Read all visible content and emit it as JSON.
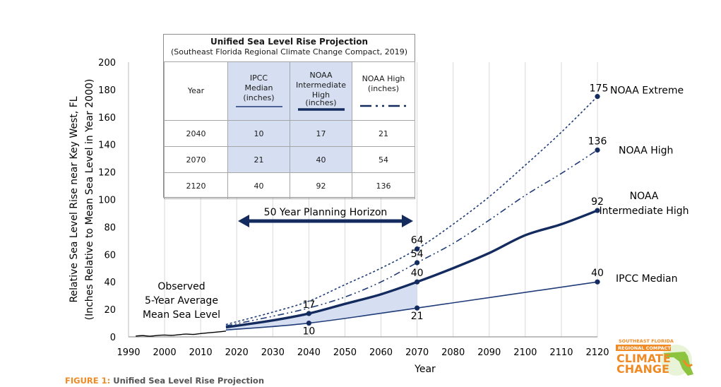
{
  "chart_data": {
    "type": "line",
    "xlabel": "Year",
    "ylabel": [
      "Relative Sea Level Rise near Key West, FL",
      "(Inches Relative to Mean Sea Level in Year 2000)"
    ],
    "xlim": [
      1990,
      2120
    ],
    "ylim": [
      0,
      200
    ],
    "x_ticks": [
      "1990",
      "2000",
      "2010",
      "2020",
      "2030",
      "2040",
      "2050",
      "2060",
      "2070",
      "2080",
      "2090",
      "2100",
      "2110",
      "2120"
    ],
    "y_ticks": [
      "0",
      "20",
      "40",
      "60",
      "80",
      "100",
      "120",
      "140",
      "160",
      "180",
      "200"
    ],
    "grid": "vertical",
    "series": [
      {
        "name": "IPCC Median",
        "style": "solid-thin",
        "color": "#1f3c78",
        "x": [
          2017,
          2040,
          2070,
          2120
        ],
        "y": [
          5,
          10,
          21,
          40
        ]
      },
      {
        "name": "NOAA Intermediate High",
        "style": "solid-thick",
        "color": "#132b5e",
        "x": [
          2017,
          2030,
          2040,
          2050,
          2060,
          2070,
          2080,
          2090,
          2100,
          2110,
          2120
        ],
        "y": [
          7,
          12,
          17,
          24,
          31,
          40,
          50,
          61,
          74,
          82,
          92
        ]
      },
      {
        "name": "NOAA High",
        "style": "dash-dot-dot",
        "color": "#1f3c78",
        "x": [
          2017,
          2030,
          2040,
          2050,
          2060,
          2070,
          2080,
          2090,
          2100,
          2110,
          2120
        ],
        "y": [
          8,
          15,
          21,
          29,
          40,
          54,
          68,
          85,
          103,
          119,
          136
        ]
      },
      {
        "name": "NOAA Extreme",
        "style": "dotted",
        "color": "#1f3c78",
        "x": [
          2017,
          2030,
          2040,
          2050,
          2060,
          2070,
          2080,
          2090,
          2100,
          2110,
          2120
        ],
        "y": [
          9,
          18,
          26,
          38,
          50,
          64,
          82,
          102,
          125,
          149,
          175
        ]
      },
      {
        "name": "Observed 5-Year Average Mean Sea Level",
        "style": "solid-black",
        "color": "#000000",
        "x": [
          1992,
          1994,
          1996,
          1998,
          2000,
          2002,
          2004,
          2006,
          2008,
          2010,
          2012,
          2014,
          2016,
          2017
        ],
        "y": [
          0.6,
          0.9,
          0.5,
          1.0,
          1.3,
          1.1,
          1.6,
          2.0,
          1.8,
          2.4,
          2.9,
          3.4,
          3.9,
          4.2
        ]
      }
    ],
    "points": [
      {
        "x": 2040,
        "y": 10,
        "label": "10",
        "pos": "below"
      },
      {
        "x": 2040,
        "y": 17,
        "label": "17",
        "pos": "above"
      },
      {
        "x": 2070,
        "y": 21,
        "label": "21",
        "pos": "below"
      },
      {
        "x": 2070,
        "y": 40,
        "label": "40",
        "pos": "above"
      },
      {
        "x": 2070,
        "y": 54,
        "label": "54",
        "pos": "above"
      },
      {
        "x": 2070,
        "y": 64,
        "label": "64",
        "pos": "above"
      },
      {
        "x": 2120,
        "y": 40,
        "label": "40",
        "pos": "above"
      },
      {
        "x": 2120,
        "y": 92,
        "label": "92",
        "pos": "above"
      },
      {
        "x": 2120,
        "y": 136,
        "label": "136",
        "pos": "above"
      },
      {
        "x": 2120,
        "y": 175,
        "label": "175",
        "pos": "left"
      }
    ],
    "shaded_band": {
      "x_from": 2017,
      "x_to": 2070,
      "color": "#d6dff1"
    },
    "series_labels": [
      "NOAA Extreme",
      "NOAA High",
      "NOAA",
      "Intermediate High",
      "IPCC Median"
    ],
    "observed_label": [
      "Observed",
      "5-Year Average",
      "Mean Sea Level"
    ],
    "planning_horizon": {
      "label": "50 Year Planning Horizon",
      "x_from": 2020,
      "x_to": 2070
    }
  },
  "table": {
    "title": "Unified Sea Level Rise Projection",
    "subtitle": "(Southeast Florida Regional Climate Change Compact, 2019)",
    "headers": [
      "Year",
      "IPCC Median (inches)",
      "NOAA Intermediate High (inches)",
      "NOAA High (inches)"
    ],
    "header_lines": [
      [
        "Year"
      ],
      [
        "IPCC",
        "Median",
        "(inches)"
      ],
      [
        "NOAA",
        "Intermediate",
        "High",
        "(inches)"
      ],
      [
        "NOAA High",
        "(inches)"
      ]
    ],
    "rows": [
      [
        "2040",
        "10",
        "17",
        "21"
      ],
      [
        "2070",
        "21",
        "40",
        "54"
      ],
      [
        "2120",
        "40",
        "92",
        "136"
      ]
    ]
  },
  "caption": {
    "lead": "FIGURE 1:",
    "text": "Unified Sea Level Rise Projection"
  },
  "logo": {
    "line1": "SOUTHEAST FLORIDA",
    "line2": "REGIONAL COMPACT",
    "line3": "CLIMATE",
    "line4": "CHANGE"
  },
  "colors": {
    "navy": "#132b5e",
    "blue": "#1f3c78",
    "shade": "#d6dff1",
    "orange": "#f08a24",
    "green": "#8cc43f"
  }
}
